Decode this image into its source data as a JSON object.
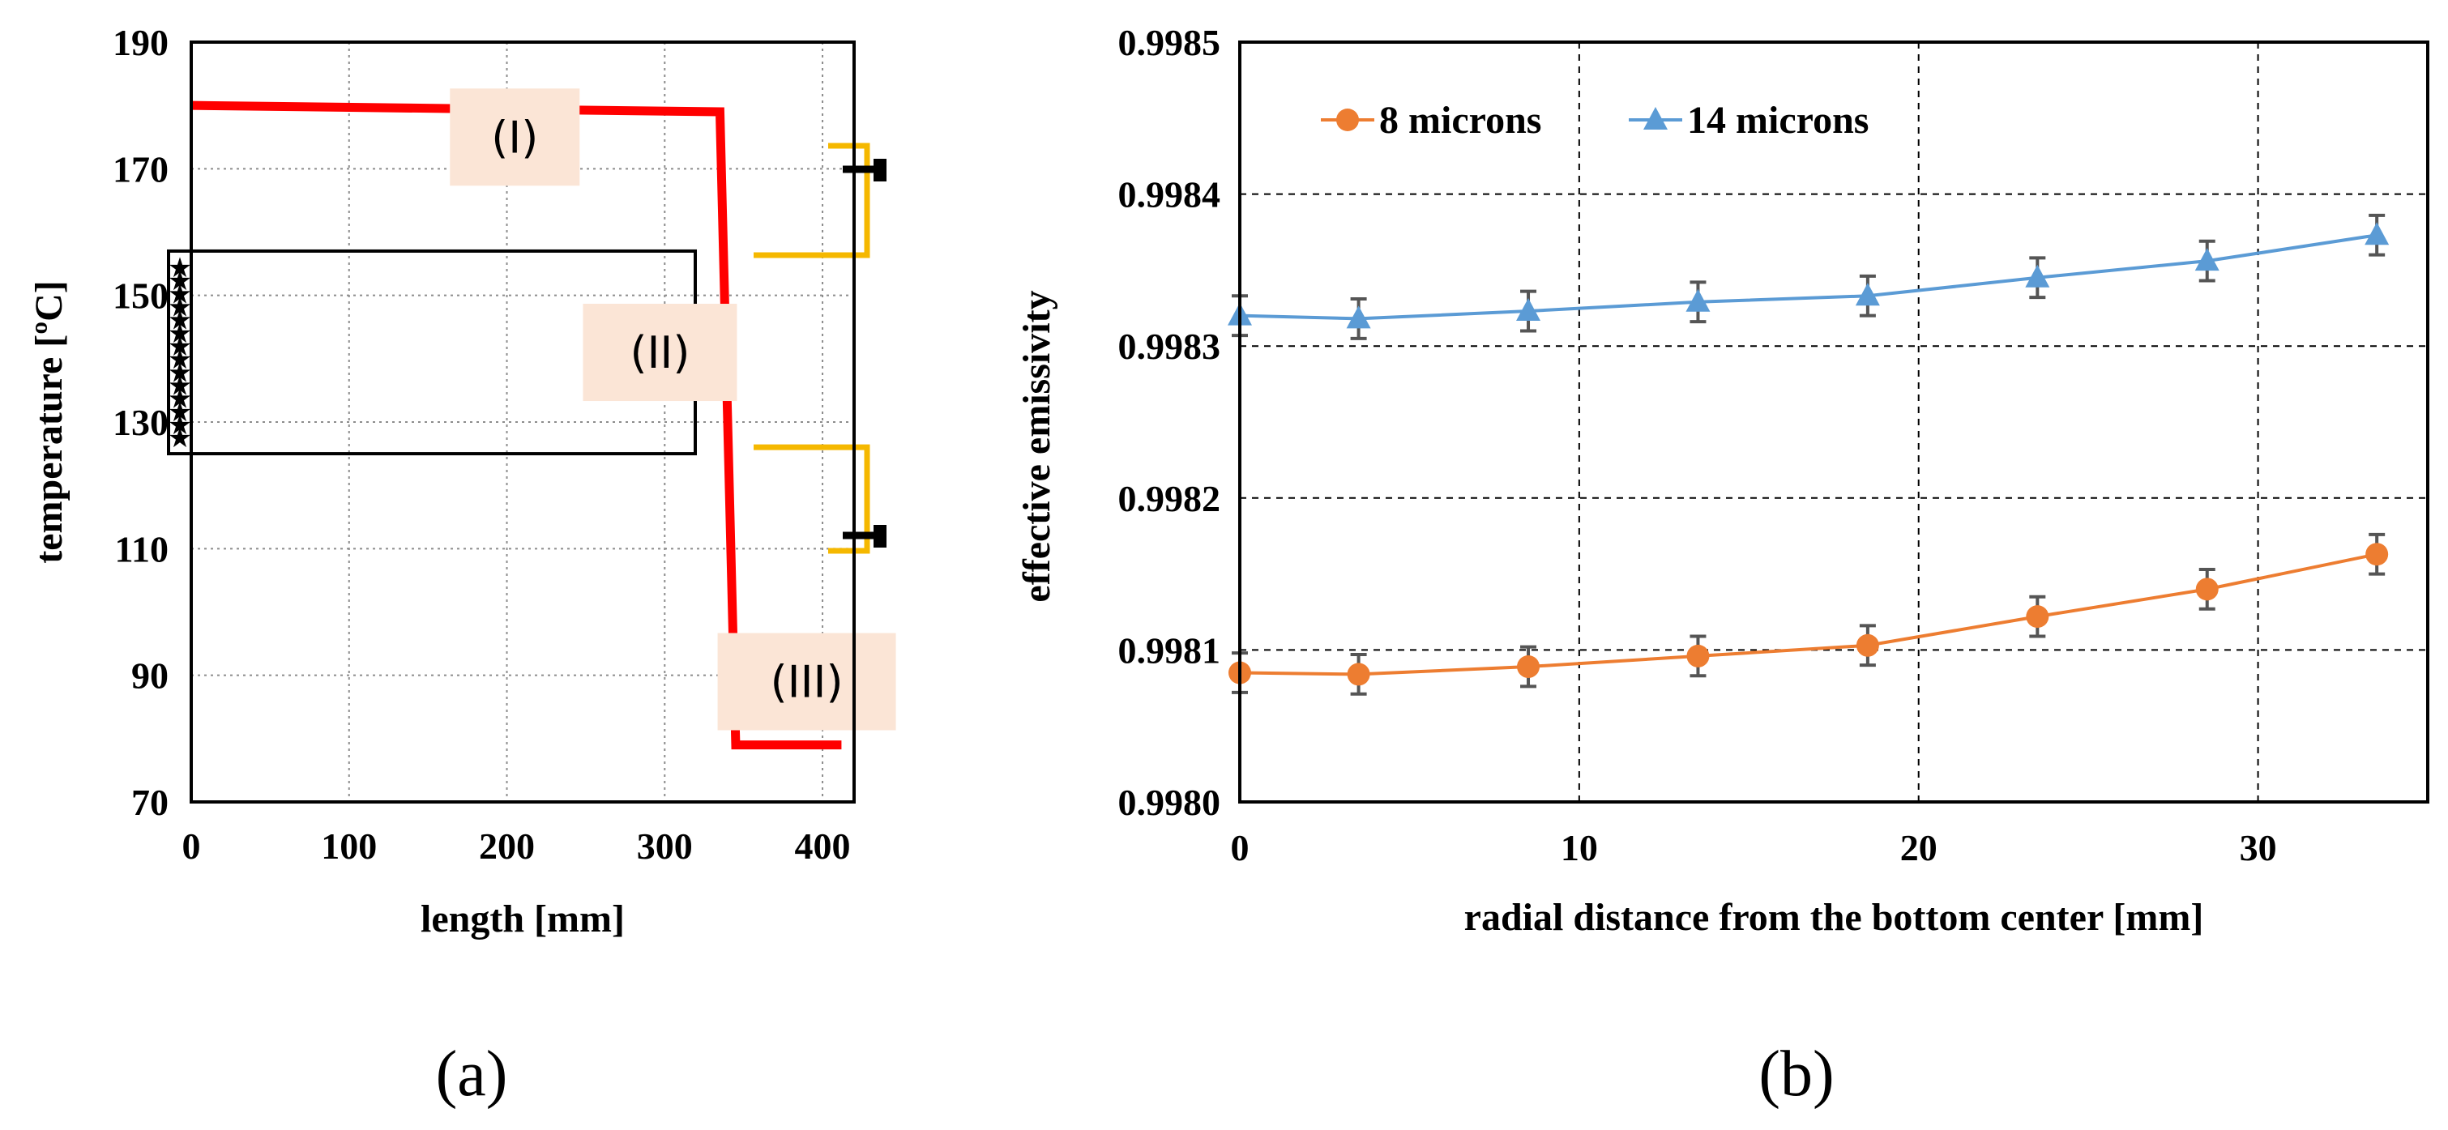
{
  "chart_data": [
    {
      "type": "line",
      "panel_label": "(a)",
      "xlabel": "length [mm]",
      "ylabel": "temperature [ºC]",
      "xlim": [
        0,
        420
      ],
      "ylim": [
        70,
        190
      ],
      "xticks": [
        "0",
        "100",
        "200",
        "300",
        "400"
      ],
      "yticks": [
        "70",
        "90",
        "110",
        "130",
        "150",
        "170",
        "190"
      ],
      "grid": "dotted",
      "series": [
        {
          "color": "#ff0000",
          "x": [
            0,
            335,
            345,
            412
          ],
          "y": [
            180,
            179,
            79,
            79
          ]
        }
      ],
      "regions": [
        {
          "label": "(I)",
          "x": 205,
          "y": 175
        },
        {
          "label": "(II)",
          "x": 297,
          "y": 141
        },
        {
          "label": "(III)",
          "x": 390,
          "y": 89
        }
      ],
      "region_box": {
        "y_low": 125,
        "y_high": 157
      },
      "bracket_color": "#f5b800"
    },
    {
      "type": "line",
      "panel_label": "(b)",
      "xlabel": "radial distance from the bottom center [mm]",
      "ylabel": "effective emissivity",
      "xlim": [
        0,
        35
      ],
      "ylim": [
        0.998,
        0.9985
      ],
      "xticks": [
        "0",
        "10",
        "20",
        "30"
      ],
      "yticks": [
        "0.9980",
        "0.9981",
        "0.9982",
        "0.9983",
        "0.9984",
        "0.9985"
      ],
      "grid": "dashed",
      "legend": "top-left",
      "x": [
        0,
        3.5,
        8.5,
        13.5,
        18.5,
        23.5,
        28.5,
        33.5
      ],
      "series": [
        {
          "name": "8 microns",
          "color": "#ed7d31",
          "marker": "circle",
          "values": [
            0.998085,
            0.998084,
            0.998089,
            0.998096,
            0.998103,
            0.998122,
            0.99814,
            0.998163
          ],
          "error": 1.3e-05
        },
        {
          "name": "14 microns",
          "color": "#5b9bd5",
          "marker": "triangle",
          "values": [
            0.99832,
            0.998318,
            0.998323,
            0.998329,
            0.998333,
            0.998345,
            0.998356,
            0.998373
          ],
          "error": 1.3e-05
        }
      ]
    }
  ]
}
